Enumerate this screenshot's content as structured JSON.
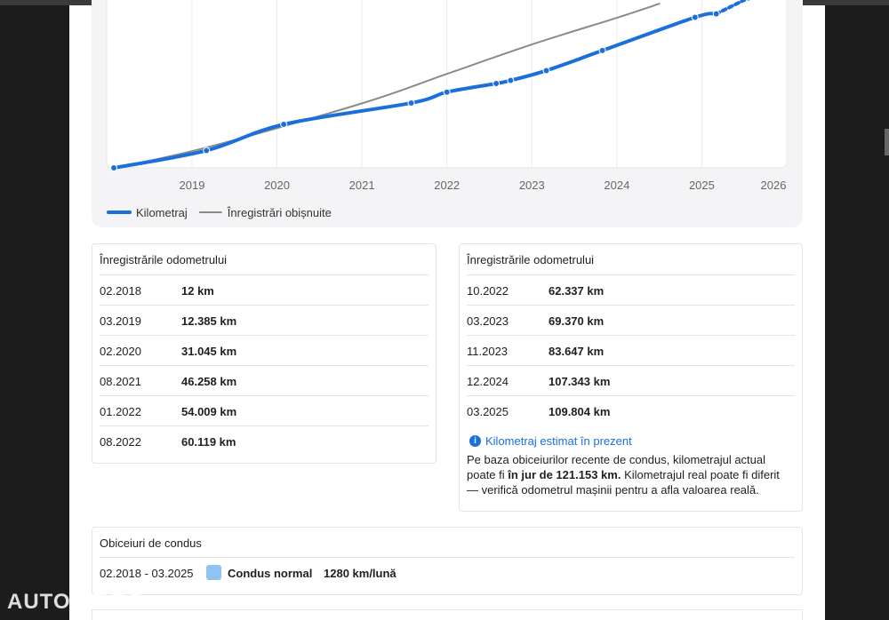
{
  "chart": {
    "type": "line",
    "xlim": [
      2018,
      2026
    ],
    "xticks": [
      2019,
      2020,
      2021,
      2022,
      2023,
      2024,
      2025,
      2026
    ],
    "ylim": [
      0,
      120000
    ],
    "grid": true,
    "dashed_last": true,
    "series": [
      {
        "name": "Kilometraj",
        "color": "#1a6fdd",
        "x": [
          2018.08,
          2019.17,
          2020.08,
          2021.58,
          2022.0,
          2022.58,
          2022.75,
          2023.17,
          2023.83,
          2024.92,
          2025.17,
          2025.55
        ],
        "values": [
          12,
          12385,
          31045,
          46258,
          54009,
          60119,
          62337,
          69370,
          83647,
          107343,
          109804,
          121153
        ]
      },
      {
        "name": "Înregistrări obișnuite",
        "color": "#8a8a8a",
        "x": [
          2018.1,
          2019.2,
          2021.0,
          2022.0,
          2023.0,
          2024.0,
          2024.5
        ],
        "values": [
          0,
          15000,
          46000,
          67000,
          88000,
          107000,
          117000
        ]
      }
    ]
  },
  "left_table": {
    "title": "Înregistrările odometrului",
    "rows": [
      [
        "02.2018",
        "12 km"
      ],
      [
        "03.2019",
        "12.385 km"
      ],
      [
        "02.2020",
        "31.045 km"
      ],
      [
        "08.2021",
        "46.258 km"
      ],
      [
        "01.2022",
        "54.009 km"
      ],
      [
        "08.2022",
        "60.119 km"
      ]
    ]
  },
  "right_table": {
    "title": "Înregistrările odometrului",
    "rows": [
      [
        "10.2022",
        "62.337 km"
      ],
      [
        "03.2023",
        "69.370 km"
      ],
      [
        "11.2023",
        "83.647 km"
      ],
      [
        "12.2024",
        "107.343 km"
      ],
      [
        "03.2025",
        "109.804 km"
      ]
    ]
  },
  "estimate": {
    "title": "Kilometraj estimat în prezent",
    "text_before": "Pe baza obiceiurilor recente de condus, kilometrajul actual poate fi ",
    "bold": "în jur de 121.153 km.",
    "text_after": " Kilometrajul real poate fi diferit — verifică odometrul mașinii pentru a afla valoarea reală."
  },
  "habits": {
    "title": "Obiceiuri de condus",
    "period": "02.2018 - 03.2025",
    "label": "Condus normal",
    "rate": "1280 km/lună"
  },
  "watermark": "AUTOVIT.RO"
}
